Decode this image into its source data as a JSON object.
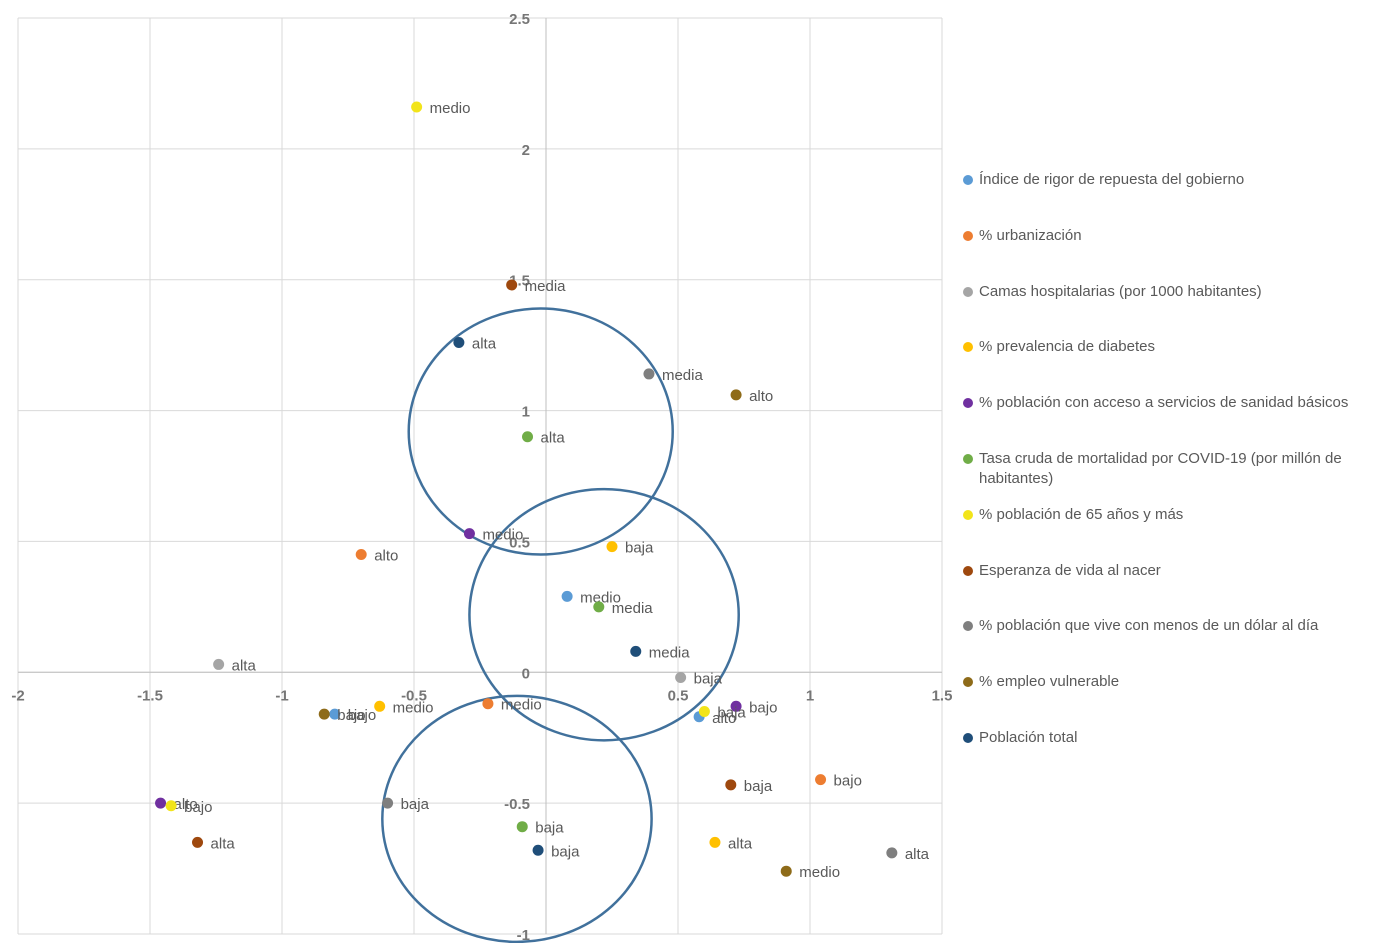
{
  "chart_data": {
    "type": "scatter",
    "xlim": [
      -2,
      1.5
    ],
    "ylim": [
      -1,
      2.5
    ],
    "x_ticks": [
      -2,
      -1.5,
      -1,
      -0.5,
      0,
      0.5,
      1,
      1.5
    ],
    "y_ticks": [
      -1,
      -0.5,
      0,
      0.5,
      1,
      1.5,
      2,
      2.5
    ],
    "x_tick_labels": [
      "-2",
      "-1.5",
      "-1",
      "-0.5",
      "0",
      "0.5",
      "1",
      "1.5"
    ],
    "y_tick_labels": [
      "-1",
      "-0.5",
      "0",
      "0.5",
      "1",
      "1.5",
      "2",
      "2.5"
    ],
    "grid": true,
    "legend_position": "right",
    "series": [
      {
        "name": "Índice de rigor de repuesta del gobierno",
        "color": "#5B9BD5",
        "points": [
          {
            "x": 0.08,
            "y": 0.29,
            "label": "medio"
          },
          {
            "x": -0.8,
            "y": -0.16,
            "label": "bajo"
          },
          {
            "x": 0.58,
            "y": -0.17,
            "label": "alto"
          }
        ]
      },
      {
        "name": "% urbanización",
        "color": "#ED7D31",
        "points": [
          {
            "x": -0.7,
            "y": 0.45,
            "label": "alto"
          },
          {
            "x": -0.22,
            "y": -0.12,
            "label": "medio"
          },
          {
            "x": 1.04,
            "y": -0.41,
            "label": "bajo"
          }
        ]
      },
      {
        "name": "Camas hospitalarias (por 1000 habitantes)",
        "color": "#A5A5A5",
        "points": [
          {
            "x": -1.24,
            "y": 0.03,
            "label": "alta"
          },
          {
            "x": 0.51,
            "y": -0.02,
            "label": "baja"
          }
        ]
      },
      {
        "name": "% prevalencia de diabetes",
        "color": "#FFC000",
        "points": [
          {
            "x": 0.25,
            "y": 0.48,
            "label": "baja"
          },
          {
            "x": -0.63,
            "y": -0.13,
            "label": "medio"
          },
          {
            "x": 0.64,
            "y": -0.65,
            "label": "alta"
          }
        ]
      },
      {
        "name": "% población con acceso a servicios de sanidad básicos",
        "color": "#7030A0",
        "points": [
          {
            "x": -0.29,
            "y": 0.53,
            "label": "medio"
          },
          {
            "x": -1.46,
            "y": -0.5,
            "label": "alto"
          },
          {
            "x": 0.72,
            "y": -0.13,
            "label": "bajo"
          }
        ]
      },
      {
        "name": "Tasa cruda de mortalidad por COVID-19 (por millón de habitantes)",
        "color": "#70AD47",
        "points": [
          {
            "x": -0.07,
            "y": 0.9,
            "label": "alta"
          },
          {
            "x": 0.2,
            "y": 0.25,
            "label": "media"
          },
          {
            "x": -0.09,
            "y": -0.59,
            "label": "baja"
          }
        ]
      },
      {
        "name": "% población de 65 años y más",
        "color": "#F2E41A",
        "points": [
          {
            "x": -0.49,
            "y": 2.16,
            "label": "medio"
          },
          {
            "x": -1.42,
            "y": -0.51,
            "label": "bajo"
          },
          {
            "x": 0.6,
            "y": -0.15,
            "label": "baja"
          }
        ]
      },
      {
        "name": "Esperanza de vida al nacer",
        "color": "#9E480E",
        "points": [
          {
            "x": -0.13,
            "y": 1.48,
            "label": "media"
          },
          {
            "x": -1.32,
            "y": -0.65,
            "label": "alta"
          },
          {
            "x": 0.7,
            "y": -0.43,
            "label": "baja"
          }
        ]
      },
      {
        "name": "% población que vive con  menos de un dólar al día",
        "color": "#7F7F7F",
        "points": [
          {
            "x": 0.39,
            "y": 1.14,
            "label": "media"
          },
          {
            "x": -0.6,
            "y": -0.5,
            "label": "baja"
          },
          {
            "x": 1.31,
            "y": -0.69,
            "label": "alta"
          }
        ]
      },
      {
        "name": "% empleo vulnerable",
        "color": "#8E6B19",
        "points": [
          {
            "x": 0.72,
            "y": 1.06,
            "label": "alto"
          },
          {
            "x": -0.84,
            "y": -0.16,
            "label": "bajo"
          },
          {
            "x": 0.91,
            "y": -0.76,
            "label": "medio"
          }
        ]
      },
      {
        "name": "Población total",
        "color": "#1F4E79",
        "points": [
          {
            "x": -0.33,
            "y": 1.26,
            "label": "alta"
          },
          {
            "x": 0.34,
            "y": 0.08,
            "label": "media"
          },
          {
            "x": -0.03,
            "y": -0.68,
            "label": "baja"
          }
        ]
      }
    ],
    "annotations": [
      {
        "type": "circle",
        "cx": -0.02,
        "cy": 0.92,
        "rx": 0.5,
        "ry": 0.47,
        "color": "#41719C"
      },
      {
        "type": "circle",
        "cx": 0.22,
        "cy": 0.22,
        "rx": 0.51,
        "ry": 0.48,
        "color": "#41719C"
      },
      {
        "type": "circle",
        "cx": -0.11,
        "cy": -0.56,
        "rx": 0.51,
        "ry": 0.47,
        "color": "#41719C"
      }
    ]
  }
}
